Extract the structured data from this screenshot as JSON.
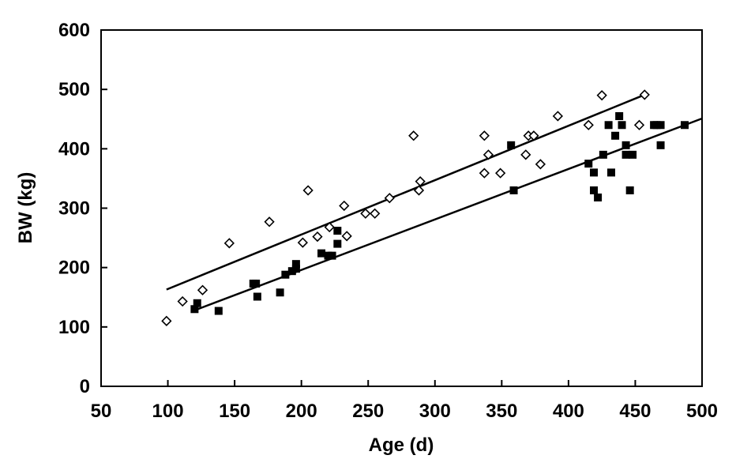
{
  "chart_data": {
    "type": "scatter",
    "title": "",
    "xlabel": "Age (d)",
    "ylabel": "BW (kg)",
    "xlim": [
      50,
      500
    ],
    "ylim": [
      0,
      600
    ],
    "x_ticks": [
      50,
      100,
      150,
      200,
      250,
      300,
      350,
      400,
      450,
      500
    ],
    "y_ticks": [
      0,
      100,
      200,
      300,
      400,
      500,
      600
    ],
    "grid": false,
    "legend": "none",
    "series": [
      {
        "marker": "open-diamond",
        "color": "#000000",
        "points": [
          [
            99,
            110
          ],
          [
            111,
            143
          ],
          [
            126,
            162
          ],
          [
            146,
            241
          ],
          [
            176,
            277
          ],
          [
            201,
            242
          ],
          [
            205,
            330
          ],
          [
            212,
            252
          ],
          [
            221,
            268
          ],
          [
            232,
            304
          ],
          [
            234,
            253
          ],
          [
            248,
            291
          ],
          [
            255,
            291
          ],
          [
            266,
            317
          ],
          [
            284,
            422
          ],
          [
            288,
            330
          ],
          [
            289,
            345
          ],
          [
            337,
            359
          ],
          [
            337,
            422
          ],
          [
            340,
            390
          ],
          [
            349,
            359
          ],
          [
            368,
            390
          ],
          [
            370,
            422
          ],
          [
            374,
            422
          ],
          [
            379,
            374
          ],
          [
            392,
            455
          ],
          [
            415,
            440
          ],
          [
            425,
            490
          ],
          [
            453,
            440
          ],
          [
            457,
            491
          ]
        ],
        "trendline": {
          "x": [
            99,
            457
          ],
          "y": [
            163,
            491
          ]
        }
      },
      {
        "marker": "filled-square",
        "color": "#000000",
        "points": [
          [
            120,
            130
          ],
          [
            122,
            140
          ],
          [
            138,
            127
          ],
          [
            164,
            173
          ],
          [
            166,
            173
          ],
          [
            167,
            151
          ],
          [
            184,
            158
          ],
          [
            188,
            188
          ],
          [
            193,
            194
          ],
          [
            196,
            206
          ],
          [
            196,
            198
          ],
          [
            215,
            224
          ],
          [
            220,
            220
          ],
          [
            223,
            220
          ],
          [
            227,
            262
          ],
          [
            227,
            240
          ],
          [
            357,
            406
          ],
          [
            359,
            330
          ],
          [
            415,
            375
          ],
          [
            419,
            360
          ],
          [
            419,
            330
          ],
          [
            422,
            318
          ],
          [
            426,
            390
          ],
          [
            430,
            440
          ],
          [
            432,
            360
          ],
          [
            435,
            422
          ],
          [
            438,
            455
          ],
          [
            440,
            440
          ],
          [
            443,
            406
          ],
          [
            443,
            390
          ],
          [
            446,
            330
          ],
          [
            448,
            390
          ],
          [
            464,
            440
          ],
          [
            466,
            440
          ],
          [
            469,
            406
          ],
          [
            469,
            440
          ],
          [
            487,
            440
          ]
        ],
        "trendline": {
          "x": [
            120,
            500
          ],
          "y": [
            128,
            451
          ]
        }
      }
    ]
  }
}
